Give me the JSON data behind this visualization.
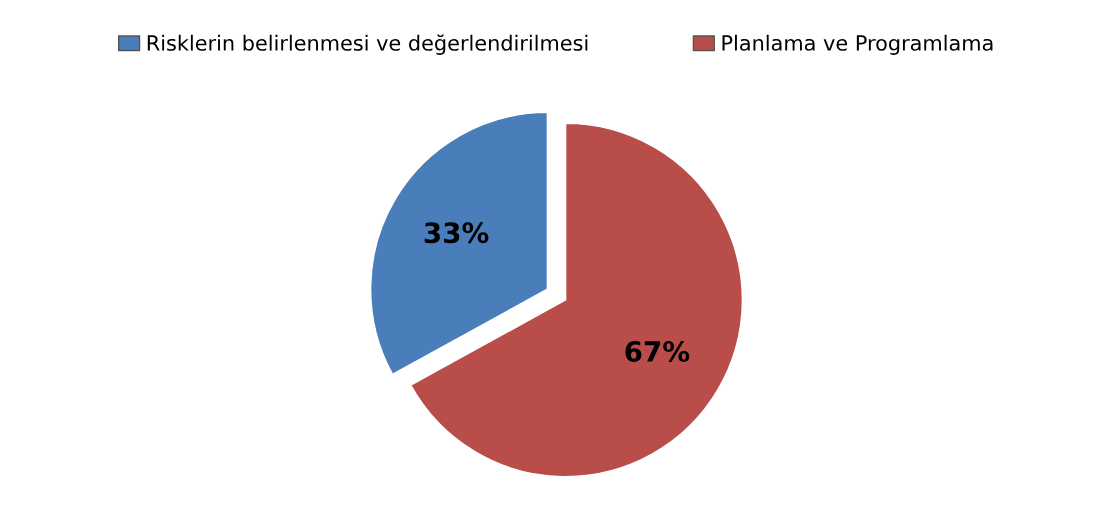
{
  "chart_data": {
    "type": "pie",
    "categories": [
      "Risklerin belirlenmesi ve değerlendirilmesi",
      "Planlama ve Programlama"
    ],
    "values": [
      33,
      67
    ],
    "colors": [
      "#4a7ebb",
      "#b94d4a"
    ],
    "value_labels": [
      "33%",
      "67%"
    ],
    "legend": "top"
  }
}
